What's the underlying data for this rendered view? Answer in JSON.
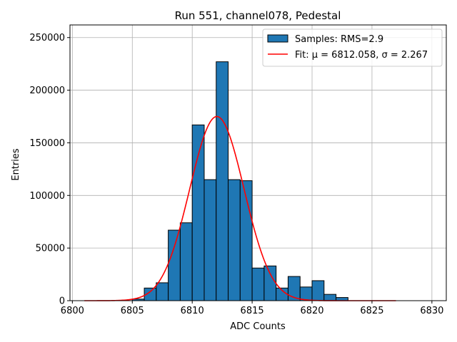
{
  "chart_data": {
    "type": "bar",
    "title": "Run 551, channel078, Pedestal",
    "xlabel": "ADC Counts",
    "ylabel": "Entries",
    "xlim": [
      6799.8,
      6831.2
    ],
    "ylim": [
      0,
      262000
    ],
    "xticks": [
      6800,
      6805,
      6810,
      6815,
      6820,
      6825,
      6830
    ],
    "yticks": [
      0,
      50000,
      100000,
      150000,
      200000,
      250000
    ],
    "grid": true,
    "legend_position": "top-right",
    "histogram": {
      "name": "Samples: RMS=2.9",
      "color": "#1f77b4",
      "edgecolor": "#000000",
      "bins": [
        {
          "x0": 6805,
          "x1": 6806,
          "count": 1500
        },
        {
          "x0": 6806,
          "x1": 6807,
          "count": 12000
        },
        {
          "x0": 6807,
          "x1": 6808,
          "count": 17000
        },
        {
          "x0": 6808,
          "x1": 6809,
          "count": 67000
        },
        {
          "x0": 6809,
          "x1": 6810,
          "count": 74000
        },
        {
          "x0": 6810,
          "x1": 6811,
          "count": 167000
        },
        {
          "x0": 6811,
          "x1": 6812,
          "count": 115000
        },
        {
          "x0": 6812,
          "x1": 6813,
          "count": 227000
        },
        {
          "x0": 6813,
          "x1": 6814,
          "count": 115000
        },
        {
          "x0": 6814,
          "x1": 6815,
          "count": 114000
        },
        {
          "x0": 6815,
          "x1": 6816,
          "count": 31000
        },
        {
          "x0": 6816,
          "x1": 6817,
          "count": 33000
        },
        {
          "x0": 6817,
          "x1": 6818,
          "count": 12000
        },
        {
          "x0": 6818,
          "x1": 6819,
          "count": 23000
        },
        {
          "x0": 6819,
          "x1": 6820,
          "count": 13000
        },
        {
          "x0": 6820,
          "x1": 6821,
          "count": 19000
        },
        {
          "x0": 6821,
          "x1": 6822,
          "count": 6000
        },
        {
          "x0": 6822,
          "x1": 6823,
          "count": 3000
        }
      ]
    },
    "fit": {
      "name": "Fit: μ = 6812.058, σ = 2.267",
      "color": "#ff0000",
      "function": "gaussian",
      "mu": 6812.058,
      "sigma": 2.267,
      "amplitude": 175000,
      "x_range": [
        6801,
        6827
      ]
    }
  }
}
